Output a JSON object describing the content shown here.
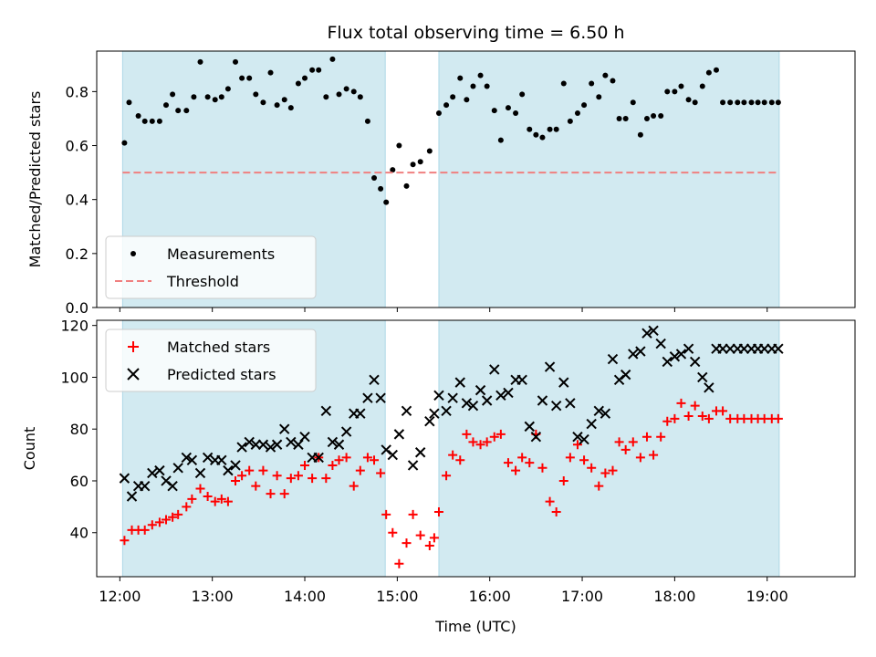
{
  "chart_data": [
    {
      "type": "scatter",
      "title": "Flux total observing time = 6.50 h",
      "xlabel": "",
      "ylabel": "Matched/Predicted stars",
      "xlim": [
        11.75,
        19.95
      ],
      "ylim": [
        0.0,
        0.95
      ],
      "yticks": [
        0.0,
        0.2,
        0.4,
        0.6,
        0.8
      ],
      "grid": false,
      "legend_position": "lower-left",
      "shaded_intervals": [
        [
          12.03,
          14.87
        ],
        [
          15.45,
          19.13
        ]
      ],
      "shade_color": "#add8e6",
      "series": [
        {
          "name": "Measurements",
          "marker": "dot",
          "color": "#000000",
          "x": [
            12.05,
            12.1,
            12.2,
            12.27,
            12.35,
            12.43,
            12.5,
            12.57,
            12.63,
            12.72,
            12.8,
            12.87,
            12.95,
            13.03,
            13.1,
            13.17,
            13.25,
            13.32,
            13.4,
            13.47,
            13.55,
            13.63,
            13.7,
            13.78,
            13.85,
            13.93,
            14.0,
            14.08,
            14.15,
            14.23,
            14.3,
            14.37,
            14.45,
            14.53,
            14.6,
            14.68,
            14.75,
            14.82,
            14.88,
            14.95,
            15.02,
            15.1,
            15.17,
            15.25,
            15.35,
            15.45,
            15.53,
            15.6,
            15.68,
            15.75,
            15.82,
            15.9,
            15.97,
            16.05,
            16.12,
            16.2,
            16.28,
            16.35,
            16.43,
            16.5,
            16.57,
            16.65,
            16.72,
            16.8,
            16.87,
            16.95,
            17.02,
            17.1,
            17.18,
            17.25,
            17.33,
            17.4,
            17.47,
            17.55,
            17.63,
            17.7,
            17.77,
            17.85,
            17.92,
            18.0,
            18.07,
            18.15,
            18.22,
            18.3,
            18.37,
            18.45,
            18.52,
            18.6,
            18.68,
            18.75,
            18.83,
            18.9,
            18.97,
            19.05,
            19.12
          ],
          "y": [
            0.61,
            0.76,
            0.71,
            0.69,
            0.69,
            0.69,
            0.75,
            0.79,
            0.73,
            0.73,
            0.78,
            0.91,
            0.78,
            0.77,
            0.78,
            0.81,
            0.91,
            0.85,
            0.85,
            0.79,
            0.76,
            0.87,
            0.75,
            0.77,
            0.74,
            0.83,
            0.85,
            0.88,
            0.88,
            0.78,
            0.92,
            0.79,
            0.81,
            0.8,
            0.78,
            0.69,
            0.48,
            0.44,
            0.39,
            0.51,
            0.6,
            0.45,
            0.53,
            0.54,
            0.58,
            0.72,
            0.75,
            0.78,
            0.85,
            0.77,
            0.82,
            0.86,
            0.82,
            0.73,
            0.62,
            0.74,
            0.72,
            0.79,
            0.66,
            0.64,
            0.63,
            0.66,
            0.66,
            0.83,
            0.69,
            0.72,
            0.75,
            0.83,
            0.78,
            0.86,
            0.84,
            0.7,
            0.7,
            0.76,
            0.64,
            0.7,
            0.71,
            0.71,
            0.8,
            0.8,
            0.82,
            0.77,
            0.76,
            0.82,
            0.87,
            0.88,
            0.76,
            0.76,
            0.76,
            0.76,
            0.76,
            0.76,
            0.76,
            0.76,
            0.76
          ]
        },
        {
          "name": "Threshold",
          "marker": "dashed-line",
          "color": "#f08080",
          "x": [
            12.03,
            19.13
          ],
          "y": [
            0.5,
            0.5
          ]
        }
      ]
    },
    {
      "type": "scatter",
      "title": "",
      "xlabel": "Time (UTC)",
      "ylabel": "Count",
      "xlim": [
        11.75,
        19.95
      ],
      "ylim": [
        23,
        122
      ],
      "yticks": [
        40,
        60,
        80,
        100,
        120
      ],
      "xticks": [
        12,
        13,
        14,
        15,
        16,
        17,
        18,
        19
      ],
      "xtick_labels": [
        "12:00",
        "13:00",
        "14:00",
        "15:00",
        "16:00",
        "17:00",
        "18:00",
        "19:00"
      ],
      "grid": false,
      "legend_position": "upper-left",
      "shaded_intervals": [
        [
          12.03,
          14.87
        ],
        [
          15.45,
          19.13
        ]
      ],
      "shade_color": "#add8e6",
      "series": [
        {
          "name": "Matched stars",
          "marker": "plus",
          "color": "#ff0000",
          "x": [
            12.05,
            12.13,
            12.2,
            12.27,
            12.35,
            12.43,
            12.5,
            12.57,
            12.63,
            12.72,
            12.78,
            12.87,
            12.95,
            13.03,
            13.1,
            13.17,
            13.25,
            13.32,
            13.4,
            13.47,
            13.55,
            13.63,
            13.7,
            13.78,
            13.85,
            13.93,
            14.0,
            14.08,
            14.15,
            14.23,
            14.3,
            14.37,
            14.45,
            14.53,
            14.6,
            14.68,
            14.75,
            14.82,
            14.88,
            14.95,
            15.02,
            15.1,
            15.17,
            15.25,
            15.35,
            15.4,
            15.45,
            15.53,
            15.6,
            15.68,
            15.75,
            15.82,
            15.9,
            15.97,
            16.05,
            16.12,
            16.2,
            16.28,
            16.35,
            16.43,
            16.5,
            16.57,
            16.65,
            16.72,
            16.8,
            16.87,
            16.95,
            17.02,
            17.1,
            17.18,
            17.25,
            17.33,
            17.4,
            17.47,
            17.55,
            17.63,
            17.7,
            17.77,
            17.85,
            17.92,
            18.0,
            18.07,
            18.15,
            18.22,
            18.3,
            18.37,
            18.45,
            18.52,
            18.6,
            18.68,
            18.75,
            18.83,
            18.9,
            18.97,
            19.05,
            19.12
          ],
          "y": [
            37,
            41,
            41,
            41,
            43,
            44,
            45,
            46,
            47,
            50,
            53,
            57,
            54,
            52,
            53,
            52,
            60,
            62,
            64,
            58,
            64,
            55,
            62,
            55,
            61,
            62,
            66,
            61,
            69,
            61,
            66,
            68,
            69,
            58,
            64,
            69,
            68,
            63,
            47,
            40,
            28,
            36,
            47,
            39,
            35,
            38,
            48,
            62,
            70,
            68,
            78,
            75,
            74,
            75,
            77,
            78,
            67,
            64,
            69,
            67,
            78,
            65,
            52,
            48,
            60,
            69,
            74,
            68,
            65,
            58,
            63,
            64,
            75,
            72,
            75,
            69,
            77,
            70,
            77,
            83,
            84,
            90,
            85,
            89,
            85,
            84,
            87,
            87,
            84,
            84,
            84,
            84,
            84,
            84,
            84,
            84
          ]
        },
        {
          "name": "Predicted stars",
          "marker": "x",
          "color": "#000000",
          "x": [
            12.05,
            12.13,
            12.2,
            12.27,
            12.35,
            12.43,
            12.5,
            12.57,
            12.63,
            12.72,
            12.78,
            12.87,
            12.95,
            13.03,
            13.1,
            13.17,
            13.25,
            13.32,
            13.4,
            13.47,
            13.55,
            13.63,
            13.7,
            13.78,
            13.85,
            13.93,
            14.0,
            14.08,
            14.15,
            14.23,
            14.3,
            14.37,
            14.45,
            14.53,
            14.6,
            14.68,
            14.75,
            14.82,
            14.88,
            14.95,
            15.02,
            15.1,
            15.17,
            15.25,
            15.35,
            15.4,
            15.45,
            15.53,
            15.6,
            15.68,
            15.75,
            15.82,
            15.9,
            15.97,
            16.05,
            16.12,
            16.2,
            16.28,
            16.35,
            16.43,
            16.5,
            16.57,
            16.65,
            16.72,
            16.8,
            16.87,
            16.95,
            17.02,
            17.1,
            17.18,
            17.25,
            17.33,
            17.4,
            17.47,
            17.55,
            17.63,
            17.7,
            17.77,
            17.85,
            17.92,
            18.0,
            18.07,
            18.15,
            18.22,
            18.3,
            18.37,
            18.45,
            18.52,
            18.6,
            18.68,
            18.75,
            18.83,
            18.9,
            18.97,
            19.05,
            19.12
          ],
          "y": [
            61,
            54,
            58,
            58,
            63,
            64,
            60,
            58,
            65,
            69,
            68,
            63,
            69,
            68,
            68,
            64,
            66,
            73,
            75,
            74,
            74,
            73,
            74,
            80,
            75,
            74,
            77,
            69,
            69,
            87,
            75,
            74,
            79,
            86,
            86,
            92,
            99,
            92,
            72,
            70,
            78,
            87,
            66,
            71,
            83,
            86,
            93,
            87,
            92,
            98,
            90,
            89,
            95,
            91,
            103,
            93,
            94,
            99,
            99,
            81,
            77,
            91,
            104,
            89,
            98,
            90,
            77,
            76,
            82,
            87,
            86,
            107,
            99,
            101,
            109,
            110,
            117,
            118,
            113,
            106,
            108,
            109,
            111,
            106,
            100,
            96,
            111,
            111,
            111,
            111,
            111,
            111,
            111,
            111,
            111,
            111
          ]
        }
      ]
    }
  ]
}
